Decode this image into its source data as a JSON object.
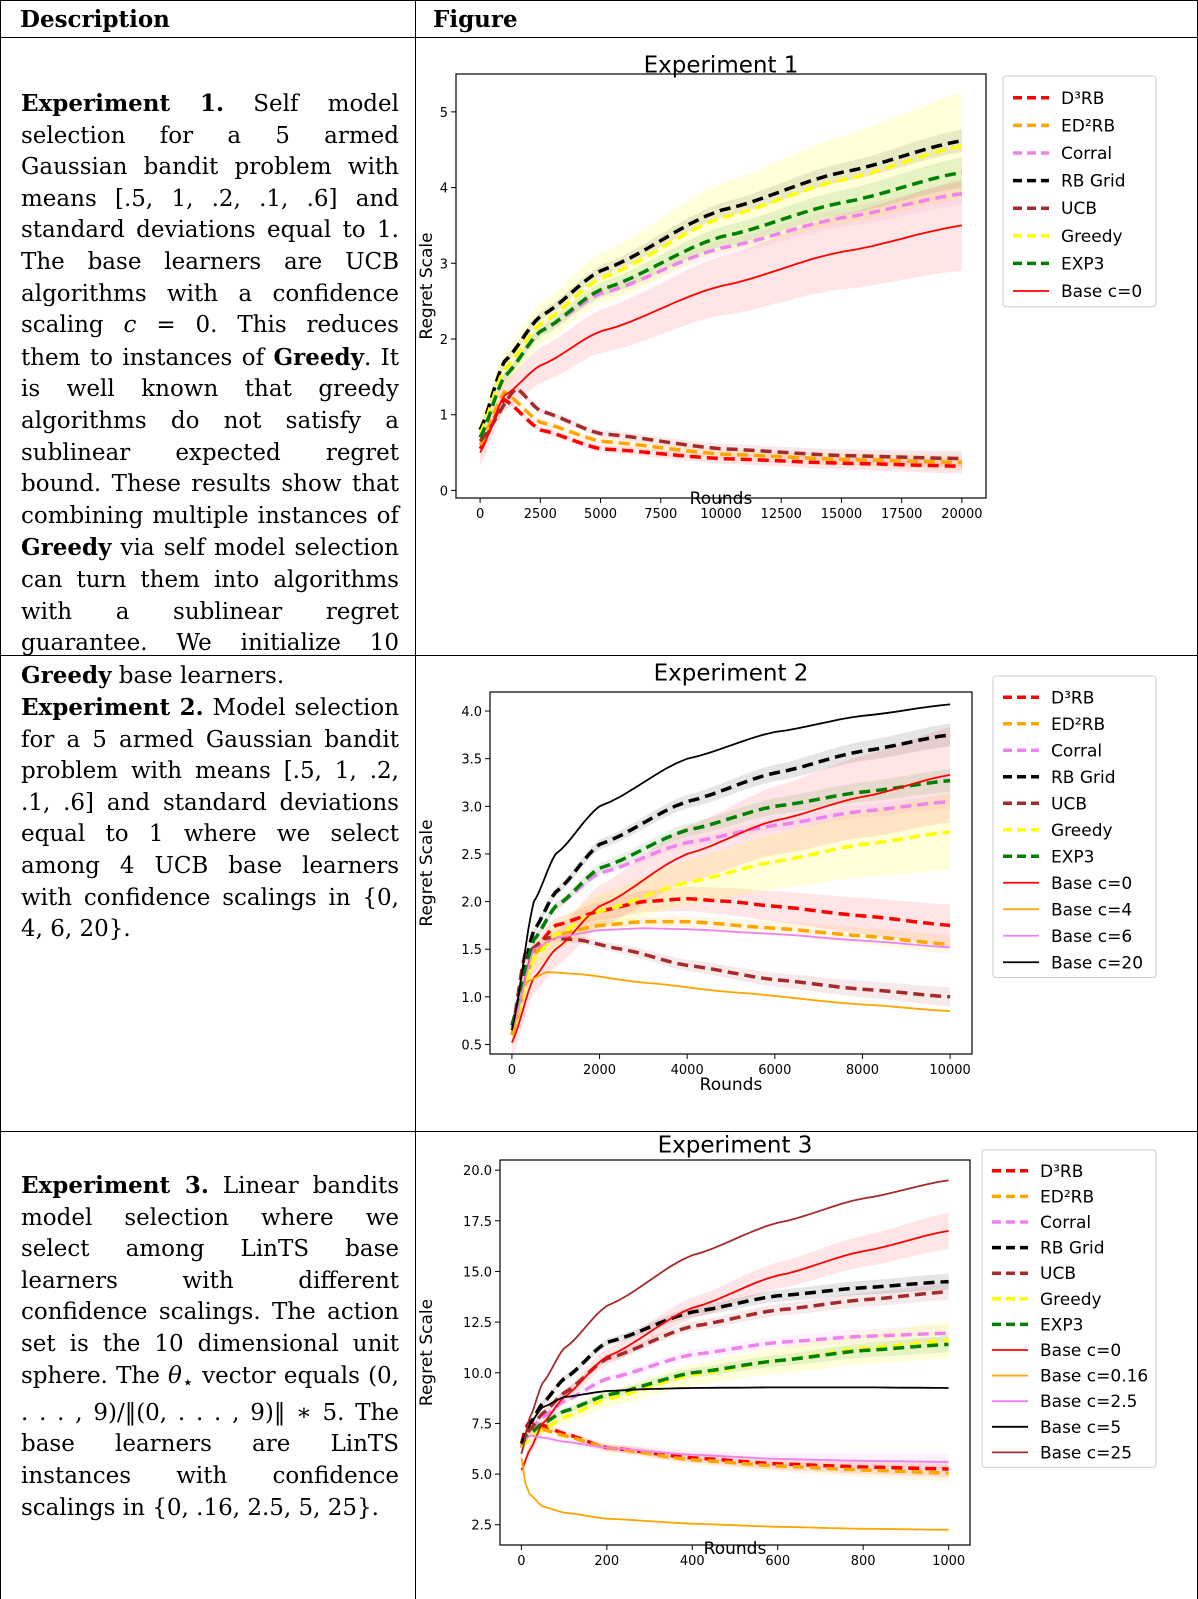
{
  "header": {
    "description": "Description",
    "figure": "Figure"
  },
  "rows": [
    {
      "title": "Experiment 1.",
      "text_html": "Self model selection for a 5 armed Gaussian bandit problem with means [.5, 1, .2, .1, .6] and standard deviations equal to 1. The base learners are UCB algorithms with a confidence scaling <i>c</i> = 0. This reduces them to instances of <b>Greedy</b>. It is well known that greedy algorithms do not satisfy a sublinear expected regret bound. These results show that combining multiple instances of <b>Greedy</b> via self model selection can turn them into algorithms with a sublinear regret guarantee. We initialize 10 <b>Greedy</b> base learners."
    },
    {
      "title": "Experiment 2.",
      "text_html": "Model selection for a 5 armed Gaussian bandit problem with means [.5, 1, .2, .1, .6] and standard deviations equal to 1 where we select among 4 UCB base learners with confidence scalings in {0, 4, 6, 20}."
    },
    {
      "title": "Experiment 3.",
      "text_html": "Linear bandits model selection where we select among LinTS base learners with different confidence scalings. The action set is the 10 dimensional unit sphere. The <i>θ</i><sub>⋆</sub> vector equals (0, . . . , 9)/‖(0, . . . , 9)‖ ∗ 5. The base learners are LinTS instances with confidence scalings in {0, .16, 2.5, 5, 25}."
    }
  ],
  "chart_data": [
    {
      "type": "line",
      "title": "Experiment 1",
      "xlabel": "Rounds",
      "ylabel": "Regret Scale",
      "xlim": [
        -1000,
        21000
      ],
      "ylim": [
        -0.1,
        5.5
      ],
      "xticks": [
        0,
        2500,
        5000,
        7500,
        10000,
        12500,
        15000,
        17500,
        20000
      ],
      "yticks": [
        0,
        1,
        2,
        3,
        4,
        5
      ],
      "legend_placement": "outside-right",
      "series": [
        {
          "name": "D³RB",
          "color": "#ff0000",
          "dashed": true,
          "x": [
            0,
            1000,
            2500,
            5000,
            10000,
            15000,
            20000
          ],
          "y": [
            0.55,
            1.2,
            0.8,
            0.55,
            0.42,
            0.36,
            0.32
          ],
          "band": 0.1
        },
        {
          "name": "ED²RB",
          "color": "#ffa500",
          "dashed": true,
          "x": [
            0,
            1000,
            2500,
            5000,
            10000,
            15000,
            20000
          ],
          "y": [
            0.6,
            1.3,
            0.9,
            0.65,
            0.48,
            0.41,
            0.37
          ],
          "band": 0.1
        },
        {
          "name": "Corral",
          "color": "#ee82ee",
          "dashed": true,
          "x": [
            0,
            1000,
            2500,
            5000,
            10000,
            15000,
            20000
          ],
          "y": [
            0.7,
            1.5,
            2.1,
            2.6,
            3.2,
            3.6,
            3.92
          ],
          "band": 0.15
        },
        {
          "name": "RB Grid",
          "color": "#000000",
          "dashed": true,
          "x": [
            0,
            1000,
            2500,
            5000,
            10000,
            15000,
            20000
          ],
          "y": [
            0.8,
            1.7,
            2.3,
            2.9,
            3.7,
            4.2,
            4.62
          ],
          "band": 0.15
        },
        {
          "name": "UCB",
          "color": "#a52a2a",
          "dashed": true,
          "x": [
            0,
            1500,
            2500,
            5000,
            10000,
            15000,
            20000
          ],
          "y": [
            0.65,
            1.35,
            1.05,
            0.75,
            0.55,
            0.46,
            0.42
          ],
          "band": 0.1
        },
        {
          "name": "Greedy",
          "color": "#ffff00",
          "dashed": true,
          "x": [
            0,
            1000,
            2500,
            5000,
            10000,
            15000,
            20000
          ],
          "y": [
            0.75,
            1.6,
            2.2,
            2.8,
            3.6,
            4.1,
            4.55
          ],
          "band": 0.7
        },
        {
          "name": "EXP3",
          "color": "#008000",
          "dashed": true,
          "x": [
            0,
            1000,
            2500,
            5000,
            10000,
            15000,
            20000
          ],
          "y": [
            0.7,
            1.5,
            2.1,
            2.65,
            3.35,
            3.8,
            4.2
          ],
          "band": 0.2
        },
        {
          "name": "Base c=0",
          "color": "#ff0000",
          "dashed": false,
          "x": [
            0,
            1000,
            2500,
            5000,
            10000,
            15000,
            20000
          ],
          "y": [
            0.5,
            1.25,
            1.65,
            2.1,
            2.7,
            3.15,
            3.5
          ],
          "band": 0.6
        }
      ]
    },
    {
      "type": "line",
      "title": "Experiment 2",
      "xlabel": "Rounds",
      "ylabel": "Regret Scale",
      "xlim": [
        -500,
        10500
      ],
      "ylim": [
        0.4,
        4.2
      ],
      "xticks": [
        0,
        2000,
        4000,
        6000,
        8000,
        10000
      ],
      "yticks": [
        0.5,
        1.0,
        1.5,
        2.0,
        2.5,
        3.0,
        3.5,
        4.0
      ],
      "legend_placement": "outside-right",
      "series": [
        {
          "name": "D³RB",
          "color": "#ff0000",
          "dashed": true,
          "x": [
            0,
            500,
            1000,
            2000,
            3000,
            4000,
            5000,
            6000,
            8000,
            10000
          ],
          "y": [
            0.6,
            1.5,
            1.75,
            1.9,
            2.0,
            2.03,
            2.0,
            1.95,
            1.85,
            1.75
          ],
          "band": 0.22
        },
        {
          "name": "ED²RB",
          "color": "#ffa500",
          "dashed": true,
          "x": [
            0,
            500,
            1000,
            2000,
            3000,
            4000,
            6000,
            8000,
            10000
          ],
          "y": [
            0.6,
            1.45,
            1.65,
            1.75,
            1.79,
            1.79,
            1.72,
            1.64,
            1.55
          ],
          "band": 0.1
        },
        {
          "name": "Corral",
          "color": "#ee82ee",
          "dashed": true,
          "x": [
            0,
            500,
            1000,
            2000,
            4000,
            6000,
            8000,
            10000
          ],
          "y": [
            0.7,
            1.6,
            1.95,
            2.3,
            2.62,
            2.8,
            2.95,
            3.05
          ],
          "band": 0.08
        },
        {
          "name": "RB Grid",
          "color": "#000000",
          "dashed": true,
          "x": [
            0,
            500,
            1000,
            2000,
            4000,
            6000,
            8000,
            10000
          ],
          "y": [
            0.7,
            1.7,
            2.1,
            2.6,
            3.05,
            3.35,
            3.58,
            3.75
          ],
          "band": 0.12
        },
        {
          "name": "UCB",
          "color": "#a52a2a",
          "dashed": true,
          "x": [
            0,
            300,
            800,
            1500,
            2500,
            4000,
            6000,
            8000,
            10000
          ],
          "y": [
            0.65,
            1.45,
            1.62,
            1.6,
            1.5,
            1.33,
            1.18,
            1.08,
            1.0
          ],
          "band": 0.1
        },
        {
          "name": "Greedy",
          "color": "#ffff00",
          "dashed": true,
          "x": [
            0,
            500,
            1000,
            2000,
            4000,
            6000,
            8000,
            10000
          ],
          "y": [
            0.65,
            1.4,
            1.65,
            1.9,
            2.2,
            2.42,
            2.6,
            2.73
          ],
          "band": 0.4
        },
        {
          "name": "EXP3",
          "color": "#008000",
          "dashed": true,
          "x": [
            0,
            500,
            1000,
            2000,
            4000,
            6000,
            8000,
            10000
          ],
          "y": [
            0.7,
            1.6,
            1.95,
            2.35,
            2.75,
            3.0,
            3.15,
            3.27
          ],
          "band": 0.12
        },
        {
          "name": "Base c=0",
          "color": "#ff0000",
          "dashed": false,
          "x": [
            0,
            500,
            1000,
            2000,
            4000,
            6000,
            8000,
            10000
          ],
          "y": [
            0.52,
            1.2,
            1.5,
            1.95,
            2.5,
            2.85,
            3.1,
            3.33
          ],
          "band": 0.5
        },
        {
          "name": "Base c=4",
          "color": "#ffa500",
          "dashed": false,
          "x": [
            0,
            300,
            800,
            1500,
            3000,
            5000,
            8000,
            10000
          ],
          "y": [
            0.6,
            1.15,
            1.26,
            1.24,
            1.15,
            1.05,
            0.92,
            0.85
          ],
          "band": 0
        },
        {
          "name": "Base c=6",
          "color": "#ee82ee",
          "dashed": false,
          "x": [
            0,
            500,
            1000,
            2000,
            3000,
            4000,
            6000,
            8000,
            10000
          ],
          "y": [
            0.65,
            1.5,
            1.62,
            1.7,
            1.72,
            1.71,
            1.66,
            1.59,
            1.52
          ],
          "band": 0
        },
        {
          "name": "Base c=20",
          "color": "#000000",
          "dashed": false,
          "x": [
            0,
            500,
            1000,
            2000,
            4000,
            6000,
            8000,
            10000
          ],
          "y": [
            0.65,
            2.0,
            2.5,
            3.0,
            3.5,
            3.78,
            3.95,
            4.07
          ],
          "band": 0
        }
      ]
    },
    {
      "type": "line",
      "title": "Experiment 3",
      "xlabel": "Rounds",
      "ylabel": "Regret Scale",
      "xlim": [
        -50,
        1050
      ],
      "ylim": [
        1.5,
        20.5
      ],
      "xticks": [
        0,
        200,
        400,
        600,
        800,
        1000
      ],
      "yticks": [
        2.5,
        5.0,
        7.5,
        10.0,
        12.5,
        15.0,
        17.5,
        20.0
      ],
      "legend_placement": "outside-right",
      "series": [
        {
          "name": "D³RB",
          "color": "#ff0000",
          "dashed": true,
          "x": [
            0,
            10,
            20,
            50,
            100,
            200,
            400,
            600,
            800,
            1000
          ],
          "y": [
            6.5,
            7.3,
            7.6,
            7.4,
            7.0,
            6.3,
            5.8,
            5.5,
            5.35,
            5.25
          ],
          "band": 0.4
        },
        {
          "name": "ED²RB",
          "color": "#ffa500",
          "dashed": true,
          "x": [
            0,
            10,
            20,
            50,
            100,
            200,
            400,
            600,
            800,
            1000
          ],
          "y": [
            6.3,
            7.0,
            7.3,
            7.2,
            6.9,
            6.3,
            5.7,
            5.4,
            5.2,
            5.05
          ],
          "band": 0.4
        },
        {
          "name": "Corral",
          "color": "#ee82ee",
          "dashed": true,
          "x": [
            0,
            20,
            50,
            100,
            200,
            400,
            600,
            800,
            1000
          ],
          "y": [
            6.5,
            7.2,
            7.8,
            8.6,
            9.7,
            10.9,
            11.5,
            11.8,
            11.95
          ],
          "band": 0.4
        },
        {
          "name": "RB Grid",
          "color": "#000000",
          "dashed": true,
          "x": [
            0,
            20,
            50,
            100,
            200,
            400,
            600,
            800,
            1000
          ],
          "y": [
            6.5,
            7.5,
            8.5,
            9.7,
            11.5,
            13.0,
            13.8,
            14.2,
            14.5
          ],
          "band": 0.4
        },
        {
          "name": "UCB",
          "color": "#a52a2a",
          "dashed": true,
          "x": [
            0,
            20,
            50,
            100,
            200,
            400,
            600,
            800,
            1000
          ],
          "y": [
            6.3,
            7.2,
            8.0,
            9.0,
            10.7,
            12.3,
            13.1,
            13.6,
            14.0
          ],
          "band": 0.4
        },
        {
          "name": "Greedy",
          "color": "#ffff00",
          "dashed": true,
          "x": [
            0,
            20,
            50,
            100,
            200,
            400,
            600,
            800,
            1000
          ],
          "y": [
            6.3,
            6.8,
            7.2,
            7.8,
            8.7,
            9.9,
            10.6,
            11.2,
            11.6
          ],
          "band": 0.9
        },
        {
          "name": "EXP3",
          "color": "#008000",
          "dashed": true,
          "x": [
            0,
            20,
            50,
            100,
            200,
            400,
            600,
            800,
            1000
          ],
          "y": [
            6.5,
            7.0,
            7.5,
            8.1,
            8.9,
            10.0,
            10.6,
            11.1,
            11.4
          ],
          "band": 0.4
        },
        {
          "name": "Base c=0",
          "color": "#ff0000",
          "dashed": false,
          "x": [
            0,
            20,
            50,
            100,
            200,
            400,
            600,
            800,
            1000
          ],
          "y": [
            5.2,
            6.2,
            7.5,
            8.8,
            10.8,
            13.2,
            14.8,
            16.0,
            17.0
          ],
          "band": 0.9
        },
        {
          "name": "Base c=0.16",
          "color": "#ffa500",
          "dashed": false,
          "x": [
            0,
            10,
            20,
            50,
            100,
            200,
            400,
            600,
            800,
            1000
          ],
          "y": [
            5.8,
            4.5,
            4.0,
            3.4,
            3.1,
            2.8,
            2.55,
            2.4,
            2.3,
            2.25
          ],
          "band": 0
        },
        {
          "name": "Base c=2.5",
          "color": "#ee82ee",
          "dashed": false,
          "x": [
            0,
            20,
            50,
            100,
            200,
            400,
            600,
            800,
            1000
          ],
          "y": [
            6.5,
            6.9,
            6.8,
            6.6,
            6.3,
            5.95,
            5.75,
            5.65,
            5.6
          ],
          "band": 0.4
        },
        {
          "name": "Base c=5",
          "color": "#000000",
          "dashed": false,
          "x": [
            0,
            20,
            50,
            100,
            200,
            300,
            400,
            600,
            800,
            1000
          ],
          "y": [
            6.5,
            7.5,
            8.3,
            8.8,
            9.1,
            9.2,
            9.25,
            9.28,
            9.28,
            9.25
          ],
          "band": 0
        },
        {
          "name": "Base c=25",
          "color": "#a52a2a",
          "dashed": false,
          "x": [
            0,
            20,
            50,
            100,
            200,
            400,
            600,
            800,
            1000
          ],
          "y": [
            6.0,
            7.8,
            9.5,
            11.2,
            13.3,
            15.8,
            17.4,
            18.6,
            19.5
          ],
          "band": 0
        }
      ]
    }
  ]
}
